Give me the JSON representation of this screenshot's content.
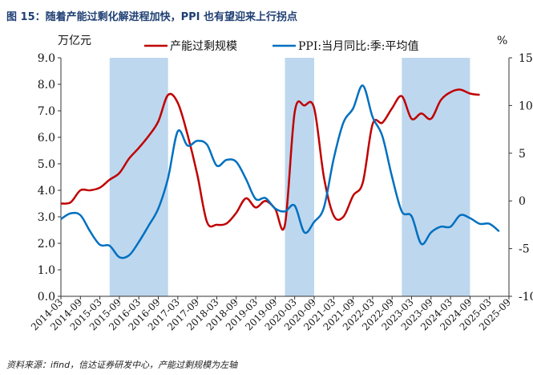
{
  "figure": {
    "title": "图 15：随着产能过剩化解进程加快，PPI 也有望迎来上行拐点",
    "source": "资料来源：ifind，信达证券研发中心，产能过剩规模为左轴"
  },
  "chart_data": {
    "type": "line",
    "left_axis": {
      "unit": "万亿元",
      "ylim": [
        0,
        9
      ],
      "ticks": [
        "0.0",
        "1.0",
        "2.0",
        "3.0",
        "4.0",
        "5.0",
        "6.0",
        "7.0",
        "8.0",
        "9.0"
      ]
    },
    "right_axis": {
      "unit": "%",
      "ylim": [
        -10,
        15
      ],
      "ticks": [
        "-10",
        "-5",
        "0",
        "5",
        "10",
        "15"
      ]
    },
    "x_tick_labels": [
      "2014-03",
      "2014-09",
      "2015-03",
      "2015-09",
      "2016-03",
      "2016-09",
      "2017-03",
      "2017-09",
      "2018-03",
      "2018-09",
      "2019-03",
      "2019-09",
      "2020-03",
      "2020-09",
      "2021-03",
      "2021-09",
      "2022-03",
      "2022-09",
      "2023-03",
      "2023-09",
      "2024-03",
      "2024-09",
      "2025-03",
      "2025-09"
    ],
    "x_range": [
      "2014-03",
      "2025-09"
    ],
    "grid": false,
    "legend_position": "top",
    "shaded_periods": [
      {
        "start": "2015-06",
        "end": "2016-12"
      },
      {
        "start": "2019-12",
        "end": "2020-09"
      },
      {
        "start": "2022-12",
        "end": "2024-09"
      }
    ],
    "series": [
      {
        "name": "产能过剩规模",
        "axis": "left",
        "color": "#c00000",
        "points": [
          [
            "2014-03",
            3.5
          ],
          [
            "2014-06",
            3.55
          ],
          [
            "2014-09",
            4.0
          ],
          [
            "2014-12",
            4.0
          ],
          [
            "2015-03",
            4.1
          ],
          [
            "2015-06",
            4.4
          ],
          [
            "2015-09",
            4.65
          ],
          [
            "2015-12",
            5.2
          ],
          [
            "2016-03",
            5.6
          ],
          [
            "2016-06",
            6.05
          ],
          [
            "2016-09",
            6.6
          ],
          [
            "2016-12",
            7.6
          ],
          [
            "2017-03",
            7.3
          ],
          [
            "2017-06",
            6.1
          ],
          [
            "2017-09",
            4.6
          ],
          [
            "2017-12",
            2.8
          ],
          [
            "2018-03",
            2.7
          ],
          [
            "2018-06",
            2.75
          ],
          [
            "2018-09",
            3.15
          ],
          [
            "2018-12",
            3.7
          ],
          [
            "2019-03",
            3.35
          ],
          [
            "2019-06",
            3.6
          ],
          [
            "2019-09",
            3.3
          ],
          [
            "2019-12",
            2.7
          ],
          [
            "2020-03",
            6.95
          ],
          [
            "2020-06",
            7.2
          ],
          [
            "2020-09",
            7.1
          ],
          [
            "2020-12",
            4.5
          ],
          [
            "2021-03",
            3.05
          ],
          [
            "2021-06",
            3.0
          ],
          [
            "2021-09",
            3.8
          ],
          [
            "2021-12",
            4.3
          ],
          [
            "2022-03",
            6.5
          ],
          [
            "2022-06",
            6.55
          ],
          [
            "2022-09",
            7.1
          ],
          [
            "2022-12",
            7.55
          ],
          [
            "2023-03",
            6.7
          ],
          [
            "2023-06",
            6.9
          ],
          [
            "2023-09",
            6.7
          ],
          [
            "2023-12",
            7.4
          ],
          [
            "2024-03",
            7.7
          ],
          [
            "2024-06",
            7.8
          ],
          [
            "2024-09",
            7.65
          ],
          [
            "2024-12",
            7.6
          ]
        ]
      },
      {
        "name": "PPI:当月同比:季:平均值",
        "axis": "right",
        "color": "#0070c0",
        "points": [
          [
            "2014-03",
            -1.9
          ],
          [
            "2014-06",
            -1.3
          ],
          [
            "2014-09",
            -1.5
          ],
          [
            "2014-12",
            -3.2
          ],
          [
            "2015-03",
            -4.6
          ],
          [
            "2015-06",
            -4.7
          ],
          [
            "2015-09",
            -5.9
          ],
          [
            "2015-12",
            -5.7
          ],
          [
            "2016-03",
            -4.3
          ],
          [
            "2016-06",
            -2.6
          ],
          [
            "2016-09",
            -0.8
          ],
          [
            "2016-12",
            2.4
          ],
          [
            "2017-03",
            7.3
          ],
          [
            "2017-06",
            5.8
          ],
          [
            "2017-09",
            6.3
          ],
          [
            "2017-12",
            5.9
          ],
          [
            "2018-03",
            3.7
          ],
          [
            "2018-06",
            4.3
          ],
          [
            "2018-09",
            4.1
          ],
          [
            "2018-12",
            2.3
          ],
          [
            "2019-03",
            0.2
          ],
          [
            "2019-06",
            0.3
          ],
          [
            "2019-09",
            -0.8
          ],
          [
            "2019-12",
            -1.1
          ],
          [
            "2020-03",
            -0.5
          ],
          [
            "2020-06",
            -3.3
          ],
          [
            "2020-09",
            -2.2
          ],
          [
            "2020-12",
            -0.7
          ],
          [
            "2021-03",
            4.4
          ],
          [
            "2021-06",
            8.2
          ],
          [
            "2021-09",
            9.7
          ],
          [
            "2021-12",
            12.1
          ],
          [
            "2022-03",
            8.8
          ],
          [
            "2022-06",
            6.8
          ],
          [
            "2022-09",
            2.5
          ],
          [
            "2022-12",
            -1.1
          ],
          [
            "2023-03",
            -1.6
          ],
          [
            "2023-06",
            -4.5
          ],
          [
            "2023-09",
            -3.3
          ],
          [
            "2023-12",
            -2.7
          ],
          [
            "2024-03",
            -2.7
          ],
          [
            "2024-06",
            -1.5
          ],
          [
            "2024-09",
            -1.8
          ],
          [
            "2024-12",
            -2.4
          ],
          [
            "2025-03",
            -2.4
          ],
          [
            "2025-06",
            -3.2
          ]
        ]
      }
    ]
  }
}
